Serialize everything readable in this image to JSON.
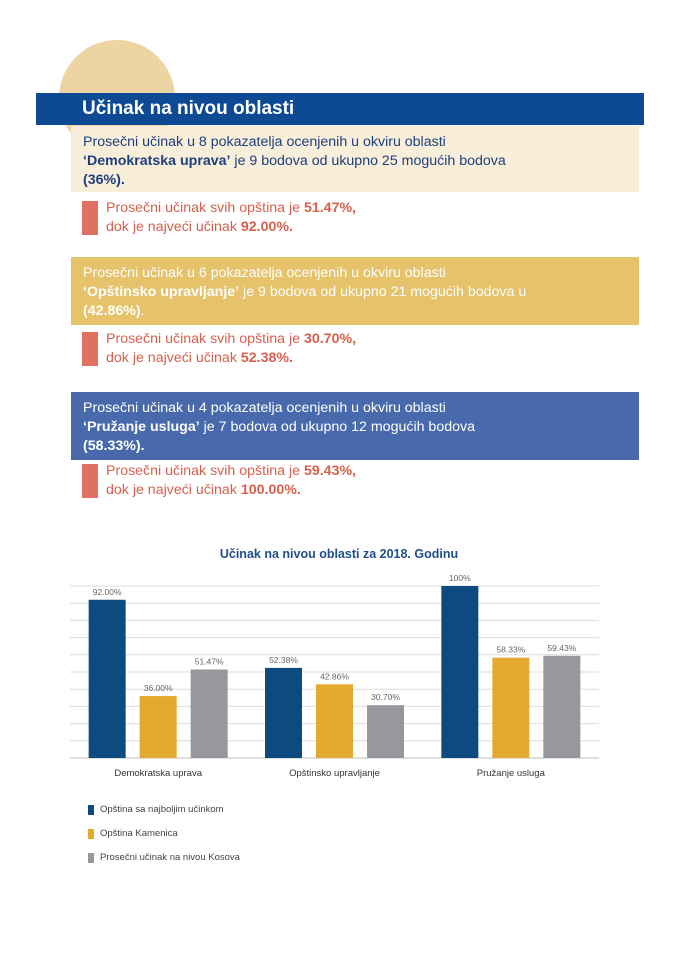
{
  "header": {
    "title": "Učinak na nivou oblasti"
  },
  "areas": [
    {
      "intro": "Prosečni učinak u 8 pokazatelja ocenjenih u okviru oblasti",
      "name": "‘Demokratska uprava’",
      "mid": " je 9 bodova od ukupno 25 mogućih bodova",
      "pct": "(36%).",
      "tail": "",
      "avg_prefix": "Prosečni učinak svih opština je ",
      "avg": "51.47%,",
      "max_prefix": "dok je najveći učinak ",
      "max": "92.00%."
    },
    {
      "intro": "Prosečni učinak u 6 pokazatelja ocenjenih u okviru oblasti",
      "name": "‘Opštinsko upravljanje’",
      "mid": " je 9 bodova od ukupno 21 mogućih bodova u",
      "pct": "(42.86%)",
      "tail": ".",
      "avg_prefix": "Prosečni učinak svih opština je ",
      "avg": "30.70%,",
      "max_prefix": "dok je najveći učinak ",
      "max": "52.38%."
    },
    {
      "intro": "Prosečni učinak u 4 pokazatelja ocenjenih u okviru oblasti",
      "name": "‘Pružanje usluga’",
      "mid": " je 7 bodova od ukupno 12 mogućih bodova",
      "pct": "(58.33%).",
      "tail": "",
      "avg_prefix": "Prosečni učinak svih opština je ",
      "avg": "59.43%,",
      "max_prefix": "dok je najveći učinak ",
      "max": "100.00%."
    }
  ],
  "chart_data": {
    "type": "bar",
    "title": "Učinak na nivou oblasti za 2018. Godinu",
    "categories": [
      "Demokratska uprava",
      "Opštinsko upravljanje",
      "Pružanje usluga"
    ],
    "series": [
      {
        "name": "Opština sa najboljim učinkom",
        "values": [
          92.0,
          52.38,
          100
        ],
        "labels": [
          "92.00%",
          "52.38%",
          "100%"
        ],
        "color": "#0d4a80"
      },
      {
        "name": "Opština Kamenica",
        "values": [
          36.0,
          42.86,
          58.33
        ],
        "labels": [
          "36.00%",
          "42.86%",
          "58.33%"
        ],
        "color": "#e4a92e"
      },
      {
        "name": "Prosečni učinak na nivou Kosova",
        "values": [
          51.47,
          30.7,
          59.43
        ],
        "labels": [
          "51.47%",
          "30.70%",
          "59.43%"
        ],
        "color": "#97989b"
      }
    ],
    "ylim": [
      0,
      100
    ],
    "grid": true,
    "legend": "bottom-left"
  }
}
